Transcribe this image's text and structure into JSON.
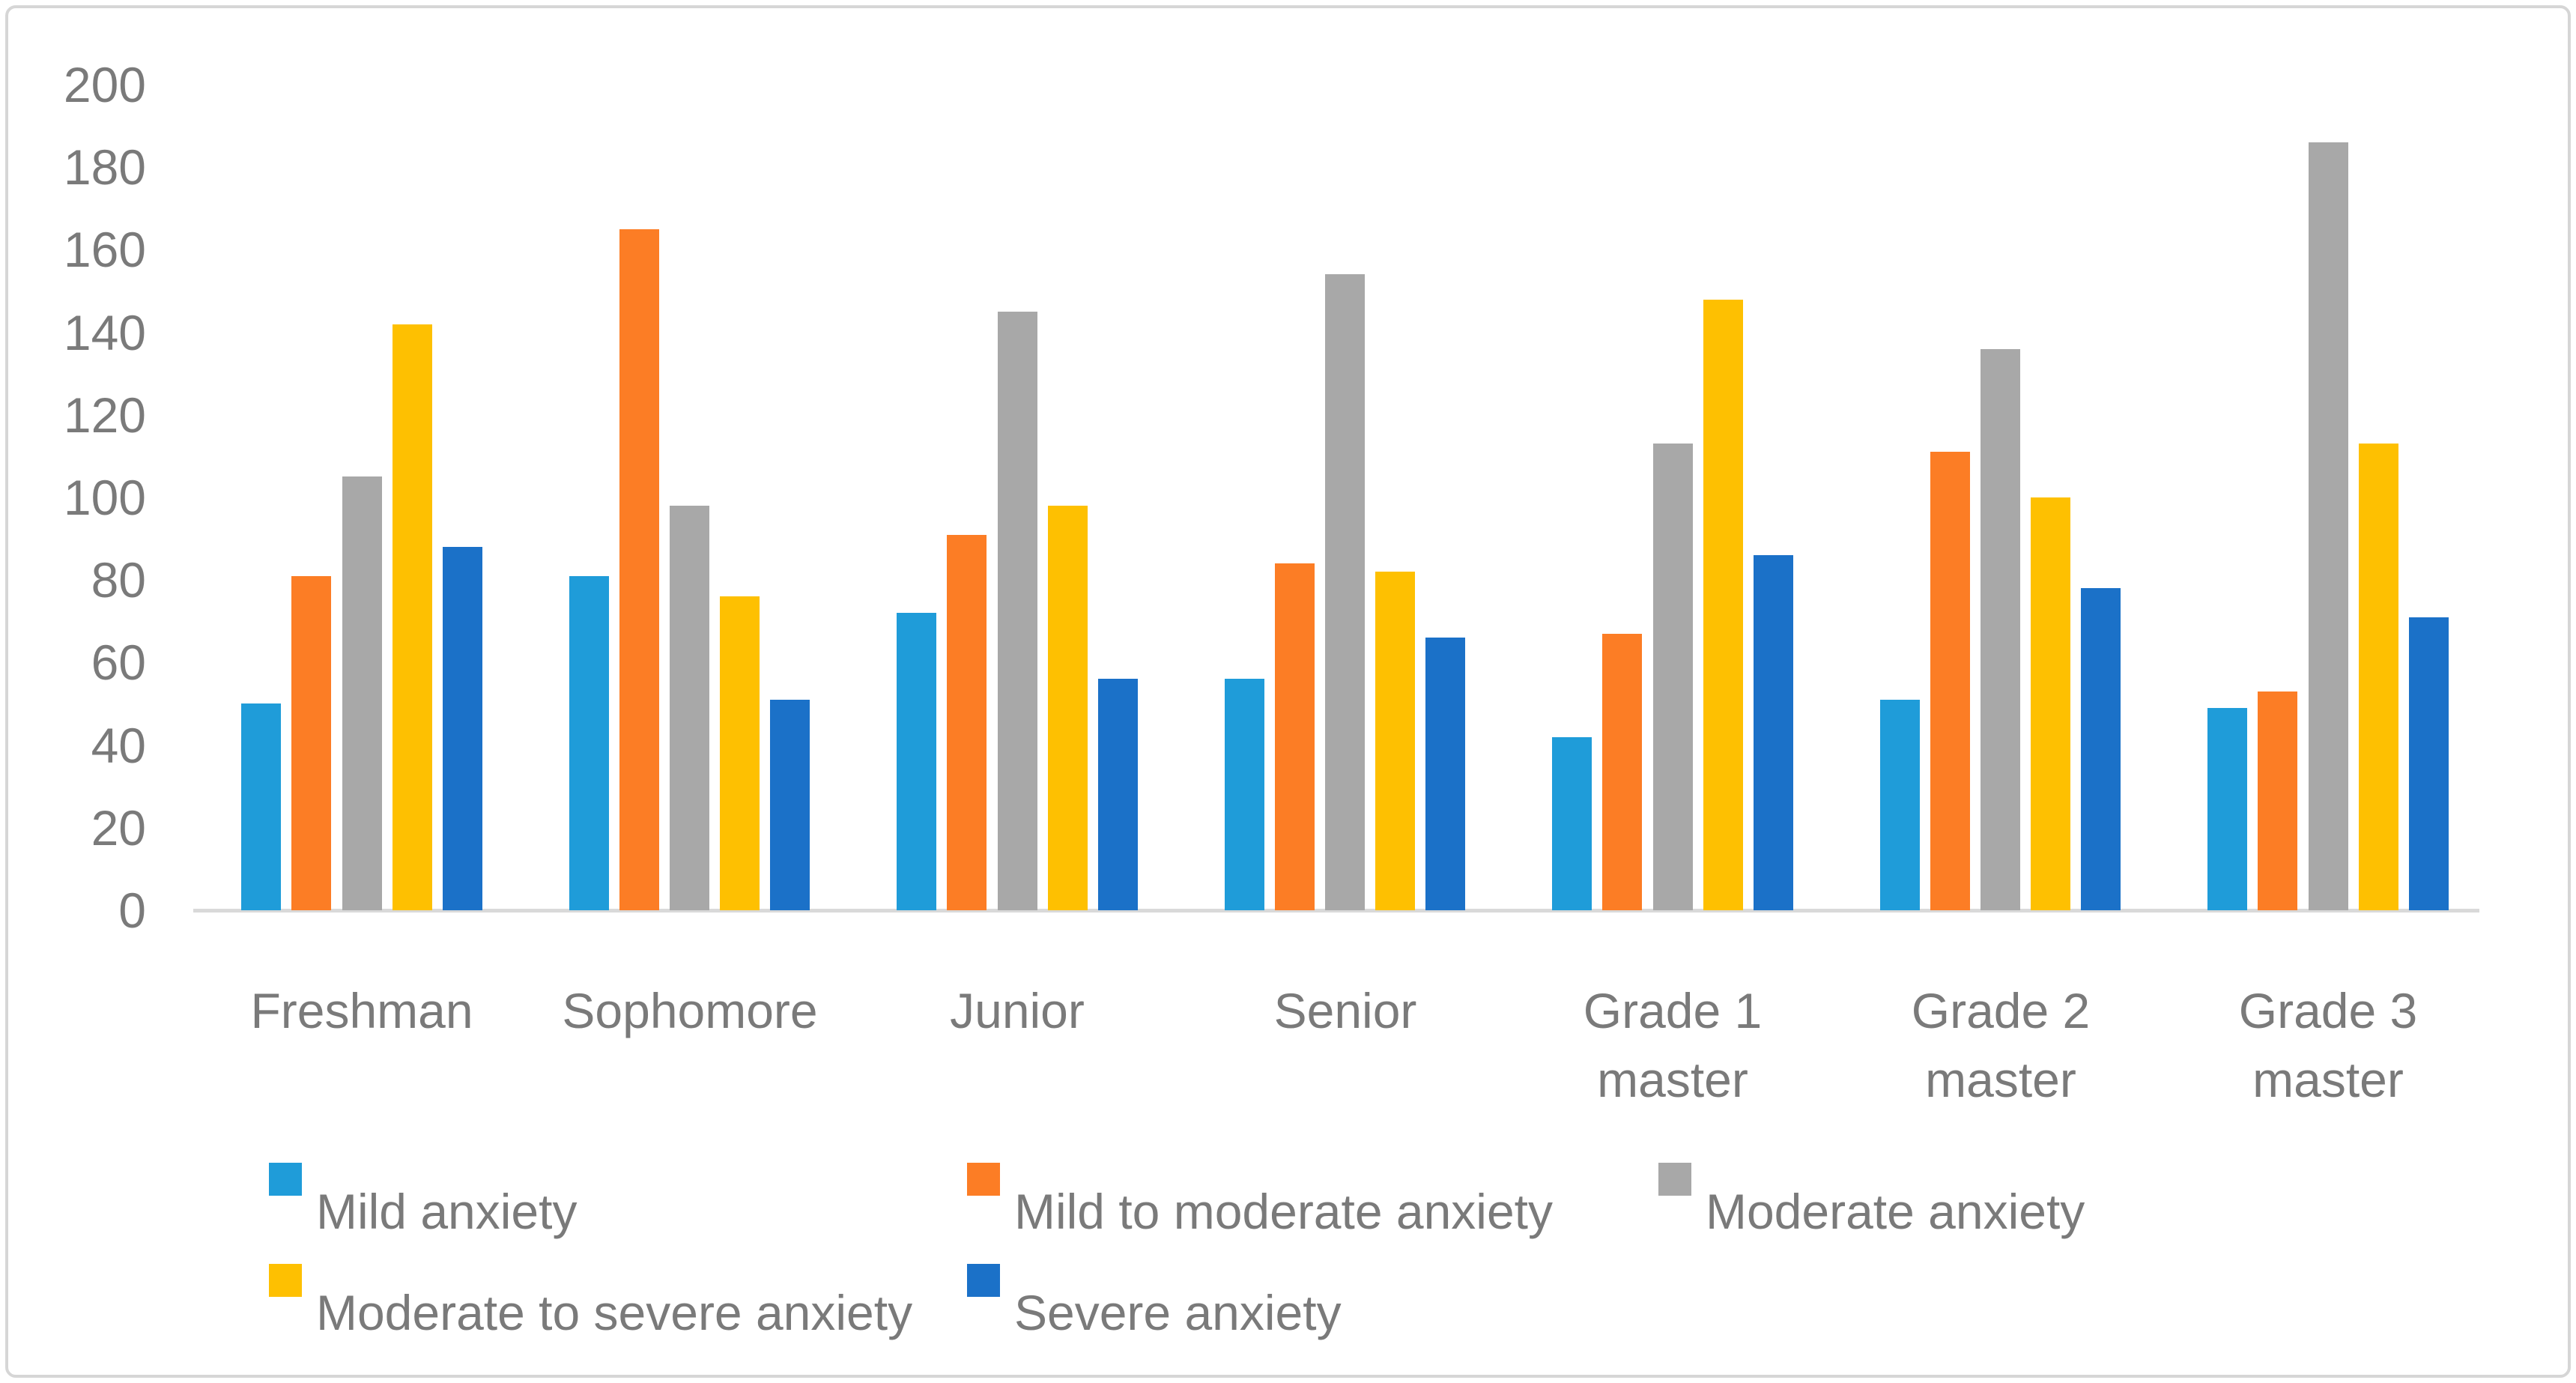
{
  "chart_data": {
    "type": "bar",
    "title": "",
    "xlabel": "",
    "ylabel": "",
    "categories": [
      "Freshman",
      "Sophomore",
      "Junior",
      "Senior",
      "Grade 1 master",
      "Grade 2 master",
      "Grade 3 master"
    ],
    "category_label_lines": [
      [
        "Freshman"
      ],
      [
        "Sophomore"
      ],
      [
        "Junior"
      ],
      [
        "Senior"
      ],
      [
        "Grade 1",
        "master"
      ],
      [
        "Grade 2",
        "master"
      ],
      [
        "Grade 3",
        "master"
      ]
    ],
    "series": [
      {
        "name": "Mild anxiety",
        "color": "#1f9cd9",
        "values": [
          50,
          81,
          72,
          56,
          42,
          51,
          49
        ]
      },
      {
        "name": "Mild to moderate anxiety",
        "color": "#fc7d25",
        "values": [
          81,
          165,
          91,
          84,
          67,
          111,
          53
        ]
      },
      {
        "name": "Moderate anxiety",
        "color": "#a8a8a8",
        "values": [
          105,
          98,
          145,
          154,
          113,
          136,
          186
        ]
      },
      {
        "name": "Moderate to severe anxiety",
        "color": "#fec001",
        "values": [
          142,
          76,
          98,
          82,
          148,
          100,
          113
        ]
      },
      {
        "name": "Severe anxiety",
        "color": "#1b71c8",
        "values": [
          88,
          51,
          56,
          66,
          86,
          78,
          71
        ]
      }
    ],
    "ylim": [
      0,
      200
    ],
    "ytick_step": 20,
    "ytick_labels": [
      "0",
      "20",
      "40",
      "60",
      "80",
      "100",
      "120",
      "140",
      "160",
      "180",
      "200"
    ],
    "grid": false,
    "legend_position": "bottom"
  },
  "legend": {
    "items": [
      {
        "label": "Mild anxiety",
        "color": "#1f9cd9"
      },
      {
        "label": "Mild to moderate anxiety",
        "color": "#fc7d25"
      },
      {
        "label": "Moderate anxiety",
        "color": "#a8a8a8"
      },
      {
        "label": "Moderate to severe anxiety",
        "color": "#fec001"
      },
      {
        "label": "Severe anxiety",
        "color": "#1b71c8"
      }
    ]
  },
  "styles": {
    "axis_line_color": "#d9d9d9",
    "text_color": "#7a7a7a",
    "border_color": "#d6d6d6",
    "background": "#ffffff"
  }
}
